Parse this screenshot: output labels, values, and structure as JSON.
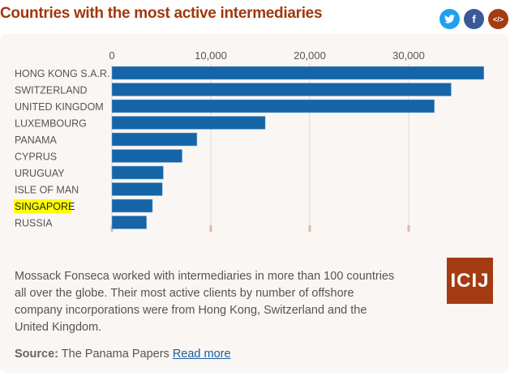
{
  "chart_data": {
    "type": "bar",
    "orientation": "horizontal",
    "title": "Countries with the most active intermediaries",
    "categories": [
      "HONG KONG S.A.R.",
      "SWITZERLAND",
      "UNITED KINGDOM",
      "LUXEMBOURG",
      "PANAMA",
      "CYPRUS",
      "URUGUAY",
      "ISLE OF MAN",
      "SINGAPORE",
      "RUSSIA"
    ],
    "values": [
      37600,
      34300,
      32600,
      15500,
      8600,
      7100,
      5200,
      5100,
      4100,
      3500
    ],
    "highlighted": "SINGAPORE",
    "xticks": [
      0,
      10000,
      20000,
      30000
    ],
    "xtick_labels": [
      "0",
      "10,000",
      "20,000",
      "30,000"
    ],
    "xlim": [
      0,
      40000
    ],
    "bar_color": "#1565a8",
    "highlight_color": "#ffff00"
  },
  "share": {
    "twitter": "twitter-icon",
    "facebook": "facebook-icon",
    "embed": "embed-icon",
    "facebook_glyph": "f",
    "embed_glyph": "</>"
  },
  "description": "Mossack Fonseca worked with intermediaries in more than 100 countries all over the globe. Their most active clients by number of offshore company incorporations were from Hong Kong, Switzerland and the United Kingdom.",
  "source": {
    "label": "Source:",
    "text": "The Panama Papers",
    "link": "Read more"
  },
  "logo": "ICIJ"
}
